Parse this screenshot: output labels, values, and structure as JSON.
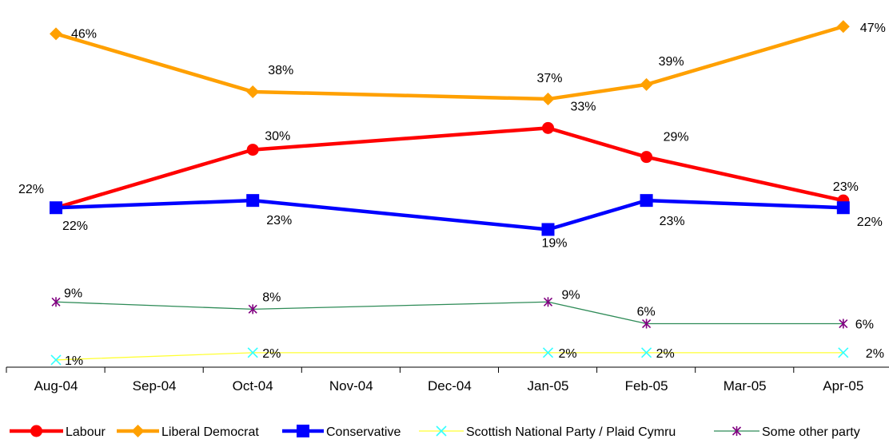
{
  "chart_data": {
    "type": "line",
    "categories": [
      "Aug-04",
      "Sep-04",
      "Oct-04",
      "Nov-04",
      "Dec-04",
      "Jan-05",
      "Feb-05",
      "Mar-05",
      "Apr-05"
    ],
    "ylim": [
      0,
      50
    ],
    "grid": false,
    "legend_position": "bottom",
    "series": [
      {
        "name": "Labour",
        "color": "#ff0000",
        "marker": "circle",
        "width": "thick",
        "points": [
          {
            "x": "Aug-04",
            "y": 22,
            "label": "22%"
          },
          {
            "x": "Oct-04",
            "y": 30,
            "label": "30%"
          },
          {
            "x": "Jan-05",
            "y": 33,
            "label": "33%"
          },
          {
            "x": "Feb-05",
            "y": 29,
            "label": "29%"
          },
          {
            "x": "Apr-05",
            "y": 23,
            "label": "23%"
          }
        ]
      },
      {
        "name": "Liberal Democrat",
        "color": "#ffa000",
        "marker": "diamond",
        "width": "thick",
        "points": [
          {
            "x": "Aug-04",
            "y": 46,
            "label": "46%"
          },
          {
            "x": "Oct-04",
            "y": 38,
            "label": "38%"
          },
          {
            "x": "Jan-05",
            "y": 37,
            "label": "37%"
          },
          {
            "x": "Feb-05",
            "y": 39,
            "label": "39%"
          },
          {
            "x": "Apr-05",
            "y": 47,
            "label": "47%"
          }
        ]
      },
      {
        "name": "Conservative",
        "color": "#0000ff",
        "marker": "square",
        "width": "thick",
        "points": [
          {
            "x": "Aug-04",
            "y": 22,
            "label": "22%"
          },
          {
            "x": "Oct-04",
            "y": 23,
            "label": "23%"
          },
          {
            "x": "Jan-05",
            "y": 19,
            "label": "19%"
          },
          {
            "x": "Feb-05",
            "y": 23,
            "label": "23%"
          },
          {
            "x": "Apr-05",
            "y": 22,
            "label": "22%"
          }
        ]
      },
      {
        "name": "Scottish National Party / Plaid Cymru",
        "color": "#ffff33",
        "marker_color": "#33ffff",
        "marker": "x",
        "width": "thin",
        "points": [
          {
            "x": "Aug-04",
            "y": 1,
            "label": "1%"
          },
          {
            "x": "Oct-04",
            "y": 2,
            "label": "2%"
          },
          {
            "x": "Jan-05",
            "y": 2,
            "label": "2%"
          },
          {
            "x": "Feb-05",
            "y": 2,
            "label": "2%"
          },
          {
            "x": "Apr-05",
            "y": 2,
            "label": "2%"
          }
        ]
      },
      {
        "name": "Some other party",
        "color": "#2e8b57",
        "marker_color": "#800080",
        "marker": "star",
        "width": "thin",
        "points": [
          {
            "x": "Aug-04",
            "y": 9,
            "label": "9%"
          },
          {
            "x": "Oct-04",
            "y": 8,
            "label": "8%"
          },
          {
            "x": "Jan-05",
            "y": 9,
            "label": "9%"
          },
          {
            "x": "Feb-05",
            "y": 6,
            "label": "6%"
          },
          {
            "x": "Apr-05",
            "y": 6,
            "label": "6%"
          }
        ]
      }
    ]
  }
}
